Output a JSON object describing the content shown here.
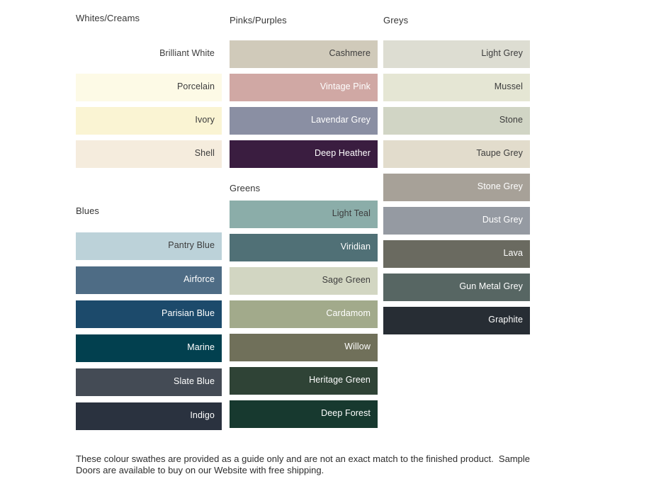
{
  "page": {
    "background": "#FFFFFF",
    "heading_text_color": "#363636",
    "dark_label_color": "#3C3C3C",
    "light_label_color": "#FFFFFF"
  },
  "columns": [
    {
      "sections": [
        {
          "title": "Whites/Creams",
          "swatches": [
            {
              "name": "Brilliant White",
              "bg": "#FFFFFF",
              "fg": "#3C3C3C"
            },
            {
              "name": "Porcelain",
              "bg": "#FDFAE6",
              "fg": "#3C3C3C"
            },
            {
              "name": "Ivory",
              "bg": "#FAF4D3",
              "fg": "#3C3C3C"
            },
            {
              "name": "Shell",
              "bg": "#F5ECDD",
              "fg": "#3C3C3C"
            }
          ]
        },
        {
          "title": "Blues",
          "swatches": [
            {
              "name": "Pantry Blue",
              "bg": "#BCD2D9",
              "fg": "#3C3C3C"
            },
            {
              "name": "Airforce",
              "bg": "#4E6C85",
              "fg": "#FFFFFF"
            },
            {
              "name": "Parisian Blue",
              "bg": "#1C4A6B",
              "fg": "#FFFFFF"
            },
            {
              "name": "Marine",
              "bg": "#02404F",
              "fg": "#FFFFFF"
            },
            {
              "name": "Slate Blue",
              "bg": "#444B55",
              "fg": "#FFFFFF"
            },
            {
              "name": "Indigo",
              "bg": "#2A323F",
              "fg": "#FFFFFF"
            }
          ]
        }
      ]
    },
    {
      "sections": [
        {
          "title": "Pinks/Purples",
          "swatches": [
            {
              "name": "Cashmere",
              "bg": "#D0CABA",
              "fg": "#3C3C3C"
            },
            {
              "name": "Vintage Pink",
              "bg": "#D0A8A4",
              "fg": "#FFFFFF"
            },
            {
              "name": "Lavendar Grey",
              "bg": "#8A8FA3",
              "fg": "#FFFFFF"
            },
            {
              "name": "Deep Heather",
              "bg": "#3A1D40",
              "fg": "#FFFFFF"
            }
          ]
        },
        {
          "title": "Greens",
          "swatches": [
            {
              "name": "Light Teal",
              "bg": "#8BADA9",
              "fg": "#3C3C3C"
            },
            {
              "name": "Viridian",
              "bg": "#507076",
              "fg": "#FFFFFF"
            },
            {
              "name": "Sage Green",
              "bg": "#D2D6C2",
              "fg": "#3C3C3C"
            },
            {
              "name": "Cardamom",
              "bg": "#A2AA8B",
              "fg": "#FFFFFF"
            },
            {
              "name": "Willow",
              "bg": "#70705A",
              "fg": "#FFFFFF"
            },
            {
              "name": "Heritage Green",
              "bg": "#2F4336",
              "fg": "#FFFFFF"
            },
            {
              "name": "Deep Forest",
              "bg": "#17392F",
              "fg": "#FFFFFF"
            }
          ]
        }
      ]
    },
    {
      "sections": [
        {
          "title": "Greys",
          "swatches": [
            {
              "name": "Light Grey",
              "bg": "#DDDDD2",
              "fg": "#3C3C3C"
            },
            {
              "name": "Mussel",
              "bg": "#E5E6D4",
              "fg": "#3C3C3C"
            },
            {
              "name": "Stone",
              "bg": "#D1D5C5",
              "fg": "#3C3C3C"
            },
            {
              "name": "Taupe Grey",
              "bg": "#E2DCCC",
              "fg": "#3C3C3C"
            },
            {
              "name": "Stone Grey",
              "bg": "#A7A198",
              "fg": "#FFFFFF"
            },
            {
              "name": "Dust Grey",
              "bg": "#959AA2",
              "fg": "#FFFFFF"
            },
            {
              "name": "Lava",
              "bg": "#6A6A60",
              "fg": "#FFFFFF"
            },
            {
              "name": "Gun Metal Grey",
              "bg": "#576663",
              "fg": "#FFFFFF"
            },
            {
              "name": "Graphite",
              "bg": "#272D34",
              "fg": "#FFFFFF"
            }
          ]
        }
      ]
    }
  ],
  "footer": {
    "lines": [
      "These colour swathes are provided as a guide only and are not an exact match to the finished product.  Sample",
      "Doors are available to buy on our Website with free shipping."
    ]
  }
}
